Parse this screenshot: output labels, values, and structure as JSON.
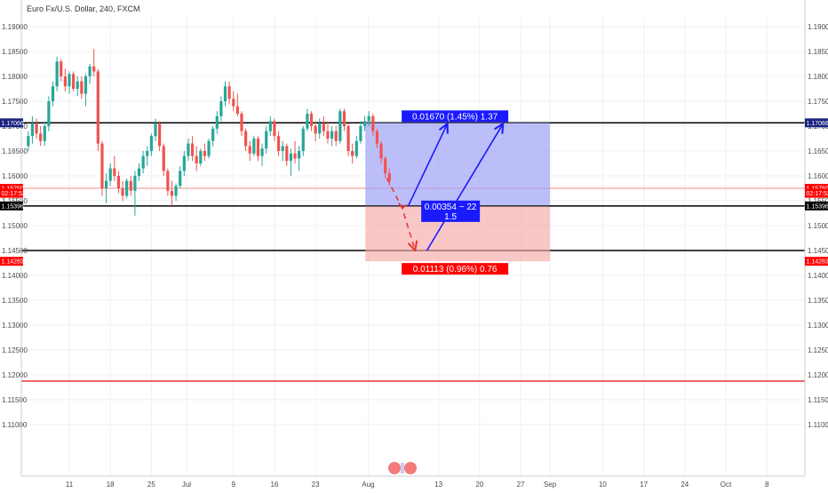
{
  "chart_data": {
    "type": "candlestick",
    "title": "Euro Fx/U.S. Dollar, 240, FXCM",
    "ylim": [
      1.1,
      1.19
    ],
    "y_ticks": [
      "1.19000",
      "1.18500",
      "1.18000",
      "1.17500",
      "1.17000",
      "1.16500",
      "1.16000",
      "1.15500",
      "1.15000",
      "1.14500",
      "1.14000",
      "1.13500",
      "1.13000",
      "1.12500",
      "1.12000",
      "1.11500",
      "1.11000"
    ],
    "x_ticks": [
      {
        "label": "11",
        "day": 11
      },
      {
        "label": "18",
        "day": 18
      },
      {
        "label": "25",
        "day": 25
      },
      {
        "label": "Jul",
        "day": 31
      },
      {
        "label": "9",
        "day": 39
      },
      {
        "label": "16",
        "day": 46
      },
      {
        "label": "23",
        "day": 53
      },
      {
        "label": "Aug",
        "day": 62
      },
      {
        "label": "13",
        "day": 74
      },
      {
        "label": "20",
        "day": 81
      },
      {
        "label": "27",
        "day": 88
      },
      {
        "label": "Sep",
        "day": 93
      },
      {
        "label": "10",
        "day": 102
      },
      {
        "label": "17",
        "day": 109
      },
      {
        "label": "24",
        "day": 116
      },
      {
        "label": "Oct",
        "day": 123
      },
      {
        "label": "8",
        "day": 130
      }
    ],
    "x_range_days": [
      4,
      136
    ],
    "candles": [
      {
        "d": 4.0,
        "o": 1.166,
        "h": 1.169,
        "l": 1.165,
        "c": 1.168
      },
      {
        "d": 4.7,
        "o": 1.168,
        "h": 1.172,
        "l": 1.1665,
        "c": 1.1705
      },
      {
        "d": 5.4,
        "o": 1.1705,
        "h": 1.1715,
        "l": 1.1675,
        "c": 1.1685
      },
      {
        "d": 6.1,
        "o": 1.1685,
        "h": 1.17,
        "l": 1.166,
        "c": 1.167
      },
      {
        "d": 6.8,
        "o": 1.167,
        "h": 1.171,
        "l": 1.166,
        "c": 1.17
      },
      {
        "d": 7.5,
        "o": 1.17,
        "h": 1.176,
        "l": 1.169,
        "c": 1.175
      },
      {
        "d": 8.2,
        "o": 1.175,
        "h": 1.179,
        "l": 1.174,
        "c": 1.178
      },
      {
        "d": 8.9,
        "o": 1.178,
        "h": 1.184,
        "l": 1.177,
        "c": 1.183
      },
      {
        "d": 9.6,
        "o": 1.183,
        "h": 1.1835,
        "l": 1.179,
        "c": 1.18
      },
      {
        "d": 10.3,
        "o": 1.18,
        "h": 1.1815,
        "l": 1.177,
        "c": 1.178
      },
      {
        "d": 11.0,
        "o": 1.178,
        "h": 1.181,
        "l": 1.1765,
        "c": 1.1805
      },
      {
        "d": 11.7,
        "o": 1.1805,
        "h": 1.181,
        "l": 1.177,
        "c": 1.1775
      },
      {
        "d": 12.4,
        "o": 1.1775,
        "h": 1.18,
        "l": 1.176,
        "c": 1.179
      },
      {
        "d": 13.1,
        "o": 1.179,
        "h": 1.18,
        "l": 1.1755,
        "c": 1.1765
      },
      {
        "d": 13.8,
        "o": 1.1765,
        "h": 1.1805,
        "l": 1.174,
        "c": 1.18
      },
      {
        "d": 14.5,
        "o": 1.18,
        "h": 1.1825,
        "l": 1.1785,
        "c": 1.182
      },
      {
        "d": 15.2,
        "o": 1.182,
        "h": 1.1855,
        "l": 1.18,
        "c": 1.181
      },
      {
        "d": 15.9,
        "o": 1.181,
        "h": 1.1815,
        "l": 1.165,
        "c": 1.1665
      },
      {
        "d": 16.6,
        "o": 1.1665,
        "h": 1.167,
        "l": 1.156,
        "c": 1.1575
      },
      {
        "d": 17.3,
        "o": 1.1575,
        "h": 1.1605,
        "l": 1.1545,
        "c": 1.159
      },
      {
        "d": 18.0,
        "o": 1.159,
        "h": 1.1625,
        "l": 1.158,
        "c": 1.1615
      },
      {
        "d": 18.7,
        "o": 1.1615,
        "h": 1.164,
        "l": 1.159,
        "c": 1.16
      },
      {
        "d": 19.4,
        "o": 1.16,
        "h": 1.161,
        "l": 1.1565,
        "c": 1.1575
      },
      {
        "d": 20.1,
        "o": 1.1575,
        "h": 1.159,
        "l": 1.155,
        "c": 1.156
      },
      {
        "d": 20.8,
        "o": 1.156,
        "h": 1.1595,
        "l": 1.1555,
        "c": 1.159
      },
      {
        "d": 21.5,
        "o": 1.159,
        "h": 1.16,
        "l": 1.156,
        "c": 1.157
      },
      {
        "d": 22.2,
        "o": 1.157,
        "h": 1.161,
        "l": 1.152,
        "c": 1.16
      },
      {
        "d": 22.9,
        "o": 1.16,
        "h": 1.1625,
        "l": 1.159,
        "c": 1.1615
      },
      {
        "d": 23.6,
        "o": 1.1615,
        "h": 1.165,
        "l": 1.1605,
        "c": 1.164
      },
      {
        "d": 24.3,
        "o": 1.164,
        "h": 1.166,
        "l": 1.162,
        "c": 1.165
      },
      {
        "d": 25.0,
        "o": 1.165,
        "h": 1.1685,
        "l": 1.164,
        "c": 1.168
      },
      {
        "d": 25.7,
        "o": 1.168,
        "h": 1.1715,
        "l": 1.167,
        "c": 1.1705
      },
      {
        "d": 26.4,
        "o": 1.1705,
        "h": 1.171,
        "l": 1.165,
        "c": 1.166
      },
      {
        "d": 27.1,
        "o": 1.166,
        "h": 1.1665,
        "l": 1.16,
        "c": 1.161
      },
      {
        "d": 27.8,
        "o": 1.161,
        "h": 1.1615,
        "l": 1.156,
        "c": 1.157
      },
      {
        "d": 28.5,
        "o": 1.157,
        "h": 1.159,
        "l": 1.154,
        "c": 1.156
      },
      {
        "d": 29.2,
        "o": 1.156,
        "h": 1.1585,
        "l": 1.155,
        "c": 1.158
      },
      {
        "d": 29.9,
        "o": 1.158,
        "h": 1.162,
        "l": 1.1575,
        "c": 1.161
      },
      {
        "d": 30.6,
        "o": 1.161,
        "h": 1.165,
        "l": 1.16,
        "c": 1.164
      },
      {
        "d": 31.3,
        "o": 1.164,
        "h": 1.1675,
        "l": 1.163,
        "c": 1.1665
      },
      {
        "d": 32.0,
        "o": 1.1665,
        "h": 1.168,
        "l": 1.163,
        "c": 1.164
      },
      {
        "d": 32.7,
        "o": 1.164,
        "h": 1.166,
        "l": 1.161,
        "c": 1.1625
      },
      {
        "d": 33.4,
        "o": 1.1625,
        "h": 1.1655,
        "l": 1.162,
        "c": 1.165
      },
      {
        "d": 34.1,
        "o": 1.165,
        "h": 1.1665,
        "l": 1.163,
        "c": 1.164
      },
      {
        "d": 34.8,
        "o": 1.164,
        "h": 1.1675,
        "l": 1.1635,
        "c": 1.167
      },
      {
        "d": 35.5,
        "o": 1.167,
        "h": 1.17,
        "l": 1.166,
        "c": 1.1695
      },
      {
        "d": 36.2,
        "o": 1.1695,
        "h": 1.173,
        "l": 1.1685,
        "c": 1.172
      },
      {
        "d": 36.9,
        "o": 1.172,
        "h": 1.176,
        "l": 1.171,
        "c": 1.175
      },
      {
        "d": 37.6,
        "o": 1.175,
        "h": 1.179,
        "l": 1.174,
        "c": 1.178
      },
      {
        "d": 38.3,
        "o": 1.178,
        "h": 1.179,
        "l": 1.1745,
        "c": 1.1755
      },
      {
        "d": 39.0,
        "o": 1.1755,
        "h": 1.177,
        "l": 1.173,
        "c": 1.174
      },
      {
        "d": 39.7,
        "o": 1.174,
        "h": 1.1765,
        "l": 1.172,
        "c": 1.1725
      },
      {
        "d": 40.4,
        "o": 1.1725,
        "h": 1.173,
        "l": 1.168,
        "c": 1.169
      },
      {
        "d": 41.1,
        "o": 1.169,
        "h": 1.1695,
        "l": 1.165,
        "c": 1.166
      },
      {
        "d": 41.8,
        "o": 1.166,
        "h": 1.167,
        "l": 1.163,
        "c": 1.1645
      },
      {
        "d": 42.5,
        "o": 1.1645,
        "h": 1.168,
        "l": 1.164,
        "c": 1.1675
      },
      {
        "d": 43.2,
        "o": 1.1675,
        "h": 1.168,
        "l": 1.163,
        "c": 1.164
      },
      {
        "d": 43.9,
        "o": 1.164,
        "h": 1.1665,
        "l": 1.162,
        "c": 1.1655
      },
      {
        "d": 44.6,
        "o": 1.1655,
        "h": 1.17,
        "l": 1.1645,
        "c": 1.169
      },
      {
        "d": 45.3,
        "o": 1.169,
        "h": 1.172,
        "l": 1.168,
        "c": 1.171
      },
      {
        "d": 46.0,
        "o": 1.171,
        "h": 1.1715,
        "l": 1.167,
        "c": 1.168
      },
      {
        "d": 46.7,
        "o": 1.168,
        "h": 1.169,
        "l": 1.164,
        "c": 1.165
      },
      {
        "d": 47.4,
        "o": 1.165,
        "h": 1.167,
        "l": 1.163,
        "c": 1.166
      },
      {
        "d": 48.1,
        "o": 1.166,
        "h": 1.1665,
        "l": 1.162,
        "c": 1.163
      },
      {
        "d": 48.8,
        "o": 1.163,
        "h": 1.1655,
        "l": 1.16,
        "c": 1.1645
      },
      {
        "d": 49.5,
        "o": 1.1645,
        "h": 1.167,
        "l": 1.1625,
        "c": 1.1635
      },
      {
        "d": 50.2,
        "o": 1.1635,
        "h": 1.166,
        "l": 1.161,
        "c": 1.165
      },
      {
        "d": 50.9,
        "o": 1.165,
        "h": 1.17,
        "l": 1.164,
        "c": 1.1695
      },
      {
        "d": 51.6,
        "o": 1.1695,
        "h": 1.1735,
        "l": 1.169,
        "c": 1.1725
      },
      {
        "d": 52.3,
        "o": 1.1725,
        "h": 1.173,
        "l": 1.169,
        "c": 1.17
      },
      {
        "d": 53.0,
        "o": 1.17,
        "h": 1.171,
        "l": 1.167,
        "c": 1.1685
      },
      {
        "d": 53.7,
        "o": 1.1685,
        "h": 1.1715,
        "l": 1.1675,
        "c": 1.1705
      },
      {
        "d": 54.4,
        "o": 1.1705,
        "h": 1.172,
        "l": 1.168,
        "c": 1.169
      },
      {
        "d": 55.1,
        "o": 1.169,
        "h": 1.171,
        "l": 1.1665,
        "c": 1.1675
      },
      {
        "d": 55.8,
        "o": 1.1675,
        "h": 1.17,
        "l": 1.166,
        "c": 1.169
      },
      {
        "d": 56.5,
        "o": 1.169,
        "h": 1.17,
        "l": 1.166,
        "c": 1.167
      },
      {
        "d": 57.2,
        "o": 1.167,
        "h": 1.1735,
        "l": 1.1665,
        "c": 1.173
      },
      {
        "d": 57.9,
        "o": 1.173,
        "h": 1.1735,
        "l": 1.169,
        "c": 1.17
      },
      {
        "d": 58.6,
        "o": 1.17,
        "h": 1.1705,
        "l": 1.164,
        "c": 1.165
      },
      {
        "d": 59.3,
        "o": 1.165,
        "h": 1.1665,
        "l": 1.1625,
        "c": 1.164
      },
      {
        "d": 60.0,
        "o": 1.164,
        "h": 1.168,
        "l": 1.1635,
        "c": 1.167
      },
      {
        "d": 60.7,
        "o": 1.167,
        "h": 1.171,
        "l": 1.1665,
        "c": 1.17
      },
      {
        "d": 61.4,
        "o": 1.17,
        "h": 1.172,
        "l": 1.169,
        "c": 1.171
      },
      {
        "d": 62.1,
        "o": 1.171,
        "h": 1.173,
        "l": 1.17,
        "c": 1.172
      },
      {
        "d": 62.8,
        "o": 1.172,
        "h": 1.1725,
        "l": 1.168,
        "c": 1.169
      },
      {
        "d": 63.5,
        "o": 1.169,
        "h": 1.1695,
        "l": 1.1655,
        "c": 1.1665
      },
      {
        "d": 64.2,
        "o": 1.1665,
        "h": 1.167,
        "l": 1.1625,
        "c": 1.1635
      },
      {
        "d": 64.9,
        "o": 1.1635,
        "h": 1.164,
        "l": 1.1595,
        "c": 1.1605
      },
      {
        "d": 65.6,
        "o": 1.1605,
        "h": 1.1615,
        "l": 1.158,
        "c": 1.159
      }
    ],
    "horizontal_levels": [
      {
        "price": 1.17066,
        "color": "#000000",
        "tag": "1.17066",
        "tag_bg": "#1a237e"
      },
      {
        "price": 1.1575,
        "color": "#f06060",
        "tag": "1.15750",
        "tag_bg": "#ff0000"
      },
      {
        "price": 1.15396,
        "color": "#000000",
        "tag": "1.15396",
        "tag_bg": "#000000"
      },
      {
        "price": 1.145,
        "color": "#000000",
        "tag": "",
        "tag_bg": ""
      },
      {
        "price": 1.14283,
        "color": "",
        "tag": "1.14283",
        "tag_bg": "#ff0000"
      },
      {
        "price": 1.11875,
        "color": "#e53935",
        "tag": "",
        "tag_bg": ""
      }
    ],
    "countdown": {
      "text": "02:17:52",
      "price": 1.1565
    },
    "position": {
      "start_day": 61.5,
      "end_day": 93,
      "target": 1.17066,
      "entry": 1.15396,
      "stop": 1.14283,
      "profit_label": "0.01670 (1.45%) 1.37",
      "ratio_label_line1": "0.00354 ~ 22",
      "ratio_label_line2": "1.5",
      "loss_label": "0.01113 (0.96%) 0.76"
    },
    "arrows": [
      {
        "style": "dashed",
        "color": "#e53935",
        "points": [
          [
            65.2,
            1.1595
          ],
          [
            67.8,
            1.1535
          ],
          [
            70.0,
            1.145
          ]
        ]
      },
      {
        "style": "solid",
        "color": "#1a1aff",
        "points": [
          [
            68.8,
            1.1539
          ],
          [
            75.5,
            1.1705
          ]
        ]
      },
      {
        "style": "solid",
        "color": "#1a1aff",
        "points": [
          [
            72.0,
            1.145
          ],
          [
            85.0,
            1.1705
          ]
        ]
      }
    ]
  }
}
